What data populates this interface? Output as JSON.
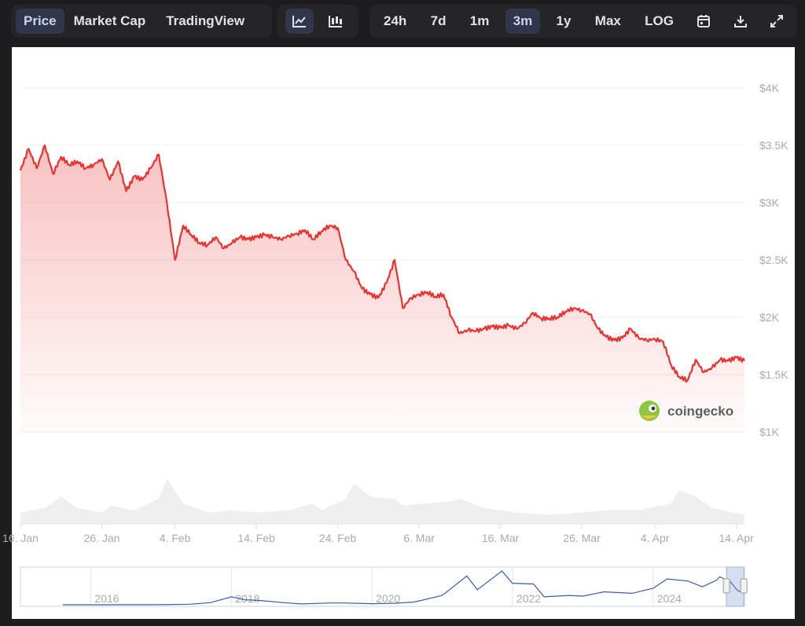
{
  "toolbar": {
    "view_tabs": [
      "Price",
      "Market Cap",
      "TradingView"
    ],
    "active_view": "Price",
    "chart_style_icons": [
      "line-chart-icon",
      "candlestick-icon"
    ],
    "active_chart_style": "line-chart-icon",
    "ranges": [
      "24h",
      "7d",
      "1m",
      "3m",
      "1y",
      "Max",
      "LOG"
    ],
    "active_range": "3m",
    "action_icons": [
      "calendar-icon",
      "download-icon",
      "expand-icon"
    ]
  },
  "colors": {
    "price_line": "#e8322f",
    "volume": "#efefef",
    "navigator_line": "#3a5ba8",
    "accent_active": "#31364a"
  },
  "watermark": "coingecko",
  "chart_data": {
    "type": "line",
    "y_tick_labels": [
      "$1K",
      "$1.5K",
      "$2K",
      "$2.5K",
      "$3K",
      "$3.5K",
      "$4K"
    ],
    "y_ticks": [
      1000,
      1500,
      2000,
      2500,
      3000,
      3500,
      4000
    ],
    "x_tick_labels": [
      "16. Jan",
      "26. Jan",
      "4. Feb",
      "14. Feb",
      "24. Feb",
      "6. Mar",
      "16. Mar",
      "26. Mar",
      "4. Apr",
      "14. Apr"
    ],
    "x_ticks": [
      "2025-01-16",
      "2025-01-26",
      "2025-02-04",
      "2025-02-14",
      "2025-02-24",
      "2025-03-06",
      "2025-03-16",
      "2025-03-26",
      "2025-04-04",
      "2025-04-14"
    ],
    "x_range": [
      "2025-01-16",
      "2025-04-15"
    ],
    "ylim": [
      1000,
      4000
    ],
    "grid": true,
    "series": [
      {
        "type": "line",
        "values": [
          [
            "2025-01-16",
            3280
          ],
          [
            "2025-01-17",
            3470
          ],
          [
            "2025-01-18",
            3300
          ],
          [
            "2025-01-19",
            3500
          ],
          [
            "2025-01-20",
            3250
          ],
          [
            "2025-01-21",
            3400
          ],
          [
            "2025-01-22",
            3330
          ],
          [
            "2025-01-23",
            3360
          ],
          [
            "2025-01-24",
            3300
          ],
          [
            "2025-01-25",
            3330
          ],
          [
            "2025-01-26",
            3380
          ],
          [
            "2025-01-27",
            3200
          ],
          [
            "2025-01-28",
            3360
          ],
          [
            "2025-01-29",
            3100
          ],
          [
            "2025-01-30",
            3230
          ],
          [
            "2025-01-31",
            3200
          ],
          [
            "2025-02-01",
            3300
          ],
          [
            "2025-02-02",
            3420
          ],
          [
            "2025-02-03",
            3000
          ],
          [
            "2025-02-04",
            2500
          ],
          [
            "2025-02-05",
            2800
          ],
          [
            "2025-02-06",
            2720
          ],
          [
            "2025-02-07",
            2650
          ],
          [
            "2025-02-08",
            2630
          ],
          [
            "2025-02-09",
            2700
          ],
          [
            "2025-02-10",
            2600
          ],
          [
            "2025-02-11",
            2650
          ],
          [
            "2025-02-12",
            2700
          ],
          [
            "2025-02-13",
            2680
          ],
          [
            "2025-02-14",
            2700
          ],
          [
            "2025-02-15",
            2720
          ],
          [
            "2025-02-16",
            2700
          ],
          [
            "2025-02-17",
            2680
          ],
          [
            "2025-02-18",
            2710
          ],
          [
            "2025-02-19",
            2730
          ],
          [
            "2025-02-20",
            2760
          ],
          [
            "2025-02-21",
            2680
          ],
          [
            "2025-02-22",
            2750
          ],
          [
            "2025-02-23",
            2800
          ],
          [
            "2025-02-24",
            2780
          ],
          [
            "2025-02-25",
            2500
          ],
          [
            "2025-02-26",
            2400
          ],
          [
            "2025-02-27",
            2250
          ],
          [
            "2025-02-28",
            2200
          ],
          [
            "2025-03-01",
            2170
          ],
          [
            "2025-03-02",
            2300
          ],
          [
            "2025-03-03",
            2500
          ],
          [
            "2025-03-04",
            2080
          ],
          [
            "2025-03-05",
            2170
          ],
          [
            "2025-03-06",
            2200
          ],
          [
            "2025-03-07",
            2220
          ],
          [
            "2025-03-08",
            2180
          ],
          [
            "2025-03-09",
            2200
          ],
          [
            "2025-03-10",
            2000
          ],
          [
            "2025-03-11",
            1860
          ],
          [
            "2025-03-12",
            1890
          ],
          [
            "2025-03-13",
            1880
          ],
          [
            "2025-03-14",
            1900
          ],
          [
            "2025-03-15",
            1920
          ],
          [
            "2025-03-16",
            1910
          ],
          [
            "2025-03-17",
            1930
          ],
          [
            "2025-03-18",
            1900
          ],
          [
            "2025-03-19",
            1950
          ],
          [
            "2025-03-20",
            2040
          ],
          [
            "2025-03-21",
            1990
          ],
          [
            "2025-03-22",
            1990
          ],
          [
            "2025-03-23",
            2000
          ],
          [
            "2025-03-24",
            2050
          ],
          [
            "2025-03-25",
            2080
          ],
          [
            "2025-03-26",
            2060
          ],
          [
            "2025-03-27",
            2030
          ],
          [
            "2025-03-28",
            1900
          ],
          [
            "2025-03-29",
            1830
          ],
          [
            "2025-03-30",
            1800
          ],
          [
            "2025-03-31",
            1820
          ],
          [
            "2025-04-01",
            1900
          ],
          [
            "2025-04-02",
            1820
          ],
          [
            "2025-04-03",
            1800
          ],
          [
            "2025-04-04",
            1810
          ],
          [
            "2025-04-05",
            1790
          ],
          [
            "2025-04-06",
            1580
          ],
          [
            "2025-04-07",
            1480
          ],
          [
            "2025-04-08",
            1450
          ],
          [
            "2025-04-09",
            1630
          ],
          [
            "2025-04-10",
            1520
          ],
          [
            "2025-04-11",
            1560
          ],
          [
            "2025-04-12",
            1630
          ],
          [
            "2025-04-13",
            1620
          ],
          [
            "2025-04-14",
            1650
          ],
          [
            "2025-04-15",
            1620
          ]
        ]
      },
      {
        "type": "area",
        "description": "volume",
        "values": [
          [
            "2025-01-16",
            0.25
          ],
          [
            "2025-01-19",
            0.35
          ],
          [
            "2025-01-21",
            0.6
          ],
          [
            "2025-01-23",
            0.35
          ],
          [
            "2025-01-26",
            0.25
          ],
          [
            "2025-01-27",
            0.4
          ],
          [
            "2025-01-30",
            0.3
          ],
          [
            "2025-02-02",
            0.55
          ],
          [
            "2025-02-03",
            1.0
          ],
          [
            "2025-02-05",
            0.45
          ],
          [
            "2025-02-08",
            0.25
          ],
          [
            "2025-02-11",
            0.3
          ],
          [
            "2025-02-14",
            0.25
          ],
          [
            "2025-02-18",
            0.3
          ],
          [
            "2025-02-21",
            0.45
          ],
          [
            "2025-02-22",
            0.3
          ],
          [
            "2025-02-25",
            0.55
          ],
          [
            "2025-02-26",
            0.9
          ],
          [
            "2025-02-28",
            0.6
          ],
          [
            "2025-03-03",
            0.55
          ],
          [
            "2025-03-04",
            0.4
          ],
          [
            "2025-03-07",
            0.45
          ],
          [
            "2025-03-10",
            0.5
          ],
          [
            "2025-03-11",
            0.55
          ],
          [
            "2025-03-14",
            0.35
          ],
          [
            "2025-03-18",
            0.25
          ],
          [
            "2025-03-22",
            0.2
          ],
          [
            "2025-03-26",
            0.25
          ],
          [
            "2025-03-29",
            0.3
          ],
          [
            "2025-04-02",
            0.3
          ],
          [
            "2025-04-06",
            0.45
          ],
          [
            "2025-04-07",
            0.75
          ],
          [
            "2025-04-09",
            0.6
          ],
          [
            "2025-04-11",
            0.35
          ],
          [
            "2025-04-15",
            0.2
          ]
        ]
      }
    ],
    "navigator": {
      "type": "line",
      "x_tick_labels": [
        "2016",
        "2018",
        "2020",
        "2022",
        "2024"
      ],
      "x_range": [
        2015,
        2025.3
      ],
      "selected_range": [
        "2025-01-16",
        "2025-04-15"
      ],
      "values": [
        [
          2015.6,
          1
        ],
        [
          2016.0,
          1
        ],
        [
          2016.5,
          10
        ],
        [
          2017.0,
          10
        ],
        [
          2017.4,
          80
        ],
        [
          2017.7,
          300
        ],
        [
          2018.0,
          1100
        ],
        [
          2018.2,
          700
        ],
        [
          2018.4,
          600
        ],
        [
          2018.8,
          250
        ],
        [
          2019.0,
          120
        ],
        [
          2019.4,
          250
        ],
        [
          2019.6,
          250
        ],
        [
          2020.0,
          150
        ],
        [
          2020.3,
          200
        ],
        [
          2020.6,
          380
        ],
        [
          2021.0,
          1300
        ],
        [
          2021.35,
          4000
        ],
        [
          2021.5,
          2100
        ],
        [
          2021.85,
          4700
        ],
        [
          2022.0,
          3000
        ],
        [
          2022.3,
          2900
        ],
        [
          2022.45,
          1100
        ],
        [
          2022.8,
          1300
        ],
        [
          2023.0,
          1200
        ],
        [
          2023.3,
          1800
        ],
        [
          2023.7,
          1600
        ],
        [
          2024.0,
          2300
        ],
        [
          2024.2,
          3600
        ],
        [
          2024.5,
          3300
        ],
        [
          2024.7,
          2500
        ],
        [
          2024.9,
          3400
        ],
        [
          2024.95,
          3900
        ],
        [
          2025.1,
          3200
        ],
        [
          2025.2,
          2000
        ],
        [
          2025.3,
          1600
        ]
      ]
    }
  }
}
